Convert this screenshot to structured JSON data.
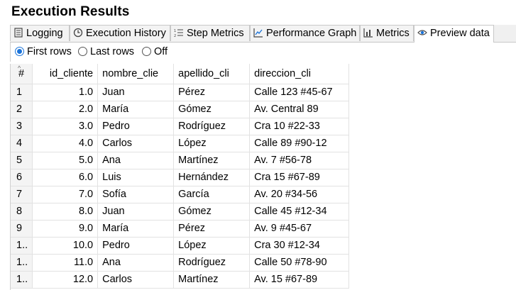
{
  "title": "Execution Results",
  "tabs": [
    {
      "label": "Logging",
      "icon": "logging-icon"
    },
    {
      "label": "Execution History",
      "icon": "history-clock-icon"
    },
    {
      "label": "Step Metrics",
      "icon": "step-metrics-icon"
    },
    {
      "label": "Performance Graph",
      "icon": "performance-graph-icon"
    },
    {
      "label": "Metrics",
      "icon": "metrics-icon"
    },
    {
      "label": "Preview data",
      "icon": "eye-icon",
      "active": true
    }
  ],
  "preview_options": {
    "first_rows": "First rows",
    "last_rows": "Last rows",
    "off": "Off",
    "selected": "first_rows"
  },
  "table": {
    "columns": [
      "#",
      "id_cliente",
      "nombre_clie",
      "apellido_cli",
      "direccion_cli"
    ],
    "rows": [
      [
        "1",
        "1.0",
        "Juan",
        "Pérez",
        "Calle 123 #45-67"
      ],
      [
        "2",
        "2.0",
        "María",
        "Gómez",
        "Av. Central 89"
      ],
      [
        "3",
        "3.0",
        "Pedro",
        "Rodríguez",
        "Cra 10 #22-33"
      ],
      [
        "4",
        "4.0",
        "Carlos",
        "López",
        "Calle 89 #90-12"
      ],
      [
        "5",
        "5.0",
        "Ana",
        "Martínez",
        "Av. 7 #56-78"
      ],
      [
        "6",
        "6.0",
        "Luis",
        "Hernández",
        "Cra 15 #67-89"
      ],
      [
        "7",
        "7.0",
        "Sofía",
        "García",
        "Av. 20 #34-56"
      ],
      [
        "8",
        "8.0",
        "Juan",
        "Gómez",
        "Calle 45 #12-34"
      ],
      [
        "9",
        "9.0",
        "María",
        "Pérez",
        "Av. 9 #45-67"
      ],
      [
        "1..",
        "10.0",
        "Pedro",
        "López",
        "Cra 30 #12-34"
      ],
      [
        "1..",
        "11.0",
        "Ana",
        "Rodríguez",
        "Calle 50 #78-90"
      ],
      [
        "1..",
        "12.0",
        "Carlos",
        "Martínez",
        "Av. 15 #67-89"
      ]
    ]
  }
}
